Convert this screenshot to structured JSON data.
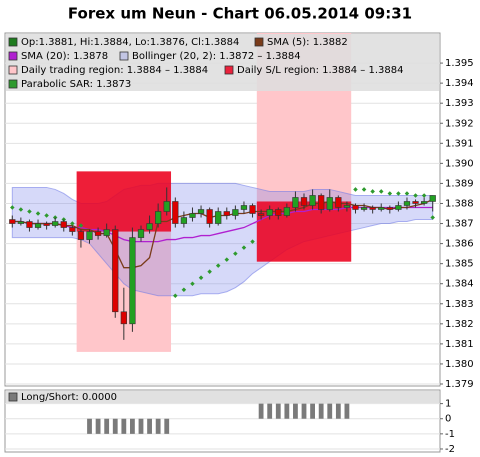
{
  "chart_data": [
    {
      "type": "candlestick",
      "title": "Forex um Neun - Chart 06.05.2014 09:31",
      "ylim": [
        1.3789,
        1.3965
      ],
      "yticks": [
        1.379,
        {
          "value": 1.38,
          "label": "1.380"
        },
        1.381,
        1.382,
        1.383,
        1.384,
        1.385,
        1.386,
        1.387,
        1.388,
        1.389,
        {
          "value": 1.39,
          "label": "1.390"
        },
        1.391,
        1.392,
        1.393,
        1.394,
        1.395
      ],
      "grid": true,
      "series": [
        {
          "name": "Op:1.3881, Hi:1.3884, Lo:1.3876, Cl:1.3884",
          "color": "#1e7b1e",
          "up_color": "#22a022",
          "down_color": "#dd0000",
          "open": [
            1.3872,
            1.387,
            1.3871,
            1.3868,
            1.387,
            1.3869,
            1.3871,
            1.3868,
            1.3866,
            1.3862,
            1.3866,
            1.3864,
            1.3867,
            1.3826,
            1.382,
            1.3863,
            1.3867,
            1.387,
            1.3876,
            1.3881,
            1.387,
            1.3873,
            1.3875,
            1.3877,
            1.387,
            1.3876,
            1.3874,
            1.3877,
            1.3879,
            1.3875,
            1.3874,
            1.3877,
            1.3874,
            1.3878,
            1.3883,
            1.3879,
            1.3884,
            1.3877,
            1.3883,
            1.3878,
            1.3879,
            1.3877,
            1.3878,
            1.3877,
            1.3878,
            1.3877,
            1.3879,
            1.3881,
            1.388,
            1.3881
          ],
          "high": [
            1.3874,
            1.3873,
            1.3872,
            1.3872,
            1.3871,
            1.3873,
            1.3872,
            1.3869,
            1.3867,
            1.3867,
            1.3868,
            1.387,
            1.3869,
            1.3838,
            1.3868,
            1.3869,
            1.3874,
            1.388,
            1.3888,
            1.3883,
            1.3876,
            1.3878,
            1.3879,
            1.3878,
            1.3878,
            1.3878,
            1.3879,
            1.3881,
            1.388,
            1.3877,
            1.3879,
            1.3878,
            1.388,
            1.3886,
            1.3885,
            1.3887,
            1.3885,
            1.3887,
            1.3884,
            1.3881,
            1.388,
            1.388,
            1.3879,
            1.388,
            1.3879,
            1.3881,
            1.3883,
            1.3882,
            1.3883,
            1.3884
          ],
          "low": [
            1.3868,
            1.3869,
            1.3866,
            1.3867,
            1.3867,
            1.3868,
            1.3866,
            1.3864,
            1.3858,
            1.386,
            1.3862,
            1.3863,
            1.3823,
            1.3812,
            1.3816,
            1.3861,
            1.3865,
            1.3868,
            1.3874,
            1.3868,
            1.3868,
            1.3871,
            1.3873,
            1.3868,
            1.3869,
            1.3872,
            1.3872,
            1.3875,
            1.3873,
            1.3872,
            1.3872,
            1.3872,
            1.3873,
            1.3876,
            1.3877,
            1.3877,
            1.3875,
            1.3876,
            1.3876,
            1.3876,
            1.3875,
            1.3876,
            1.3875,
            1.3876,
            1.3875,
            1.3876,
            1.3877,
            1.3878,
            1.3879,
            1.3876
          ],
          "close": [
            1.387,
            1.3871,
            1.3868,
            1.387,
            1.3869,
            1.3871,
            1.3868,
            1.3866,
            1.3862,
            1.3866,
            1.3864,
            1.3867,
            1.3826,
            1.382,
            1.3863,
            1.3867,
            1.387,
            1.3876,
            1.3881,
            1.387,
            1.3873,
            1.3875,
            1.3877,
            1.387,
            1.3876,
            1.3874,
            1.3877,
            1.3879,
            1.3875,
            1.3874,
            1.3877,
            1.3874,
            1.3878,
            1.3883,
            1.3879,
            1.3884,
            1.3877,
            1.3883,
            1.3878,
            1.3879,
            1.3877,
            1.3878,
            1.3877,
            1.3878,
            1.3877,
            1.3879,
            1.3881,
            1.388,
            1.3881,
            1.3884
          ]
        },
        {
          "name": "SMA (5): 1.3882",
          "color": "#7a3b1a",
          "style": "line",
          "values": [
            1.3871,
            1.3871,
            1.387,
            1.387,
            1.387,
            1.387,
            1.3869,
            1.3869,
            1.3867,
            1.3867,
            1.3865,
            1.3865,
            1.3857,
            1.3848,
            1.3848,
            1.3849,
            1.3853,
            1.3871,
            1.3871,
            1.3873,
            1.3874,
            1.3875,
            1.3875,
            1.3873,
            1.3874,
            1.3874,
            1.3875,
            1.3875,
            1.3876,
            1.3876,
            1.3876,
            1.3876,
            1.3876,
            1.3877,
            1.3878,
            1.388,
            1.388,
            1.3881,
            1.388,
            1.388,
            1.3879,
            1.3879,
            1.3878,
            1.3878,
            1.3877,
            1.3878,
            1.3878,
            1.3879,
            1.388,
            1.3882
          ]
        },
        {
          "name": "SMA (20): 1.3878",
          "color": "#b020d0",
          "style": "line",
          "values": [
            1.3871,
            1.3871,
            1.387,
            1.387,
            1.387,
            1.387,
            1.3869,
            1.3868,
            1.3868,
            1.3867,
            1.3867,
            1.3866,
            1.3864,
            1.3862,
            1.3861,
            1.3861,
            1.3861,
            1.3861,
            1.3862,
            1.3862,
            1.3863,
            1.3863,
            1.3864,
            1.3864,
            1.3865,
            1.3866,
            1.3867,
            1.3868,
            1.387,
            1.3872,
            1.3874,
            1.3875,
            1.3875,
            1.3876,
            1.3876,
            1.3877,
            1.3877,
            1.3877,
            1.3877,
            1.3878,
            1.3878,
            1.3878,
            1.3878,
            1.3878,
            1.3878,
            1.3878,
            1.3878,
            1.3878,
            1.3878,
            1.3878
          ]
        },
        {
          "name": "Bollinger (20, 2): 1.3872 – 1.3884",
          "color": "rgba(120,130,235,0.3)",
          "upper": [
            1.3888,
            1.3888,
            1.3888,
            1.3888,
            1.3888,
            1.3887,
            1.3885,
            1.3882,
            1.388,
            1.388,
            1.388,
            1.3881,
            1.3884,
            1.3887,
            1.3888,
            1.3889,
            1.3889,
            1.389,
            1.389,
            1.389,
            1.389,
            1.389,
            1.389,
            1.389,
            1.389,
            1.389,
            1.389,
            1.3889,
            1.3888,
            1.3887,
            1.3886,
            1.3886,
            1.3886,
            1.3886,
            1.3886,
            1.3887,
            1.3887,
            1.3887,
            1.3886,
            1.3885,
            1.3884,
            1.3884,
            1.3884,
            1.3884,
            1.3884,
            1.3884,
            1.3884,
            1.3884,
            1.3884,
            1.3884
          ],
          "lower": [
            1.3863,
            1.3863,
            1.3863,
            1.3863,
            1.3863,
            1.3863,
            1.3863,
            1.3863,
            1.3862,
            1.386,
            1.3855,
            1.385,
            1.3845,
            1.384,
            1.3837,
            1.3836,
            1.3835,
            1.3834,
            1.3834,
            1.3834,
            1.3834,
            1.3834,
            1.3835,
            1.3835,
            1.3835,
            1.3836,
            1.3838,
            1.3841,
            1.3845,
            1.3848,
            1.3851,
            1.3854,
            1.3857,
            1.3859,
            1.3861,
            1.3862,
            1.3863,
            1.3864,
            1.3865,
            1.3866,
            1.3867,
            1.3868,
            1.3869,
            1.387,
            1.387,
            1.3871,
            1.3871,
            1.3872,
            1.3872,
            1.3872
          ]
        },
        {
          "name": "Daily trading region: 1.3884 – 1.3884",
          "color": "#ffc6ca",
          "regions": [
            {
              "start": 8,
              "end": 18,
              "low": 1.3806,
              "high": 1.3896
            },
            {
              "start": 29,
              "end": 39,
              "low": 1.3851,
              "high": 1.3965
            }
          ]
        },
        {
          "name": "Daily S/L region: 1.3884 – 1.3884",
          "color": "rgba(235,0,30,0.85)",
          "regions": [
            {
              "start": 8,
              "end": 18,
              "low": 1.3866,
              "high": 1.3896
            },
            {
              "start": 29,
              "end": 39,
              "low": 1.3851,
              "high": 1.3881
            }
          ]
        },
        {
          "name": "Parabolic SAR: 1.3873",
          "color": "#2e9a2e",
          "style": "dot",
          "values": [
            1.3878,
            1.3877,
            1.3876,
            1.3875,
            1.3874,
            1.3873,
            1.3872,
            1.387,
            1.3869,
            null,
            null,
            null,
            null,
            null,
            null,
            null,
            null,
            null,
            null,
            1.3834,
            1.3837,
            1.384,
            1.3843,
            1.3846,
            1.3849,
            1.3852,
            1.3855,
            1.3858,
            1.3861,
            null,
            null,
            null,
            null,
            null,
            null,
            null,
            null,
            null,
            null,
            null,
            1.3887,
            1.3887,
            1.3886,
            1.3886,
            1.3885,
            1.3885,
            1.3885,
            1.3884,
            1.3884,
            1.3873
          ]
        }
      ]
    },
    {
      "type": "bar",
      "ylim": [
        -2.2,
        1.9
      ],
      "yticks": [
        1,
        0,
        -1,
        -2
      ],
      "series": [
        {
          "name": "Long/Short: 0.0000",
          "color": "#7a7a7a",
          "values": [
            0,
            0,
            0,
            0,
            0,
            0,
            0,
            0,
            0,
            -1,
            -1,
            -1,
            -1,
            -1,
            -1,
            -1,
            -1,
            -1,
            -1,
            0,
            0,
            0,
            0,
            0,
            0,
            0,
            0,
            0,
            0,
            1,
            1,
            1,
            1,
            1,
            1,
            1,
            1,
            1,
            1,
            1,
            0,
            0,
            0,
            0,
            0,
            0,
            0,
            0,
            0,
            0
          ]
        }
      ]
    }
  ]
}
